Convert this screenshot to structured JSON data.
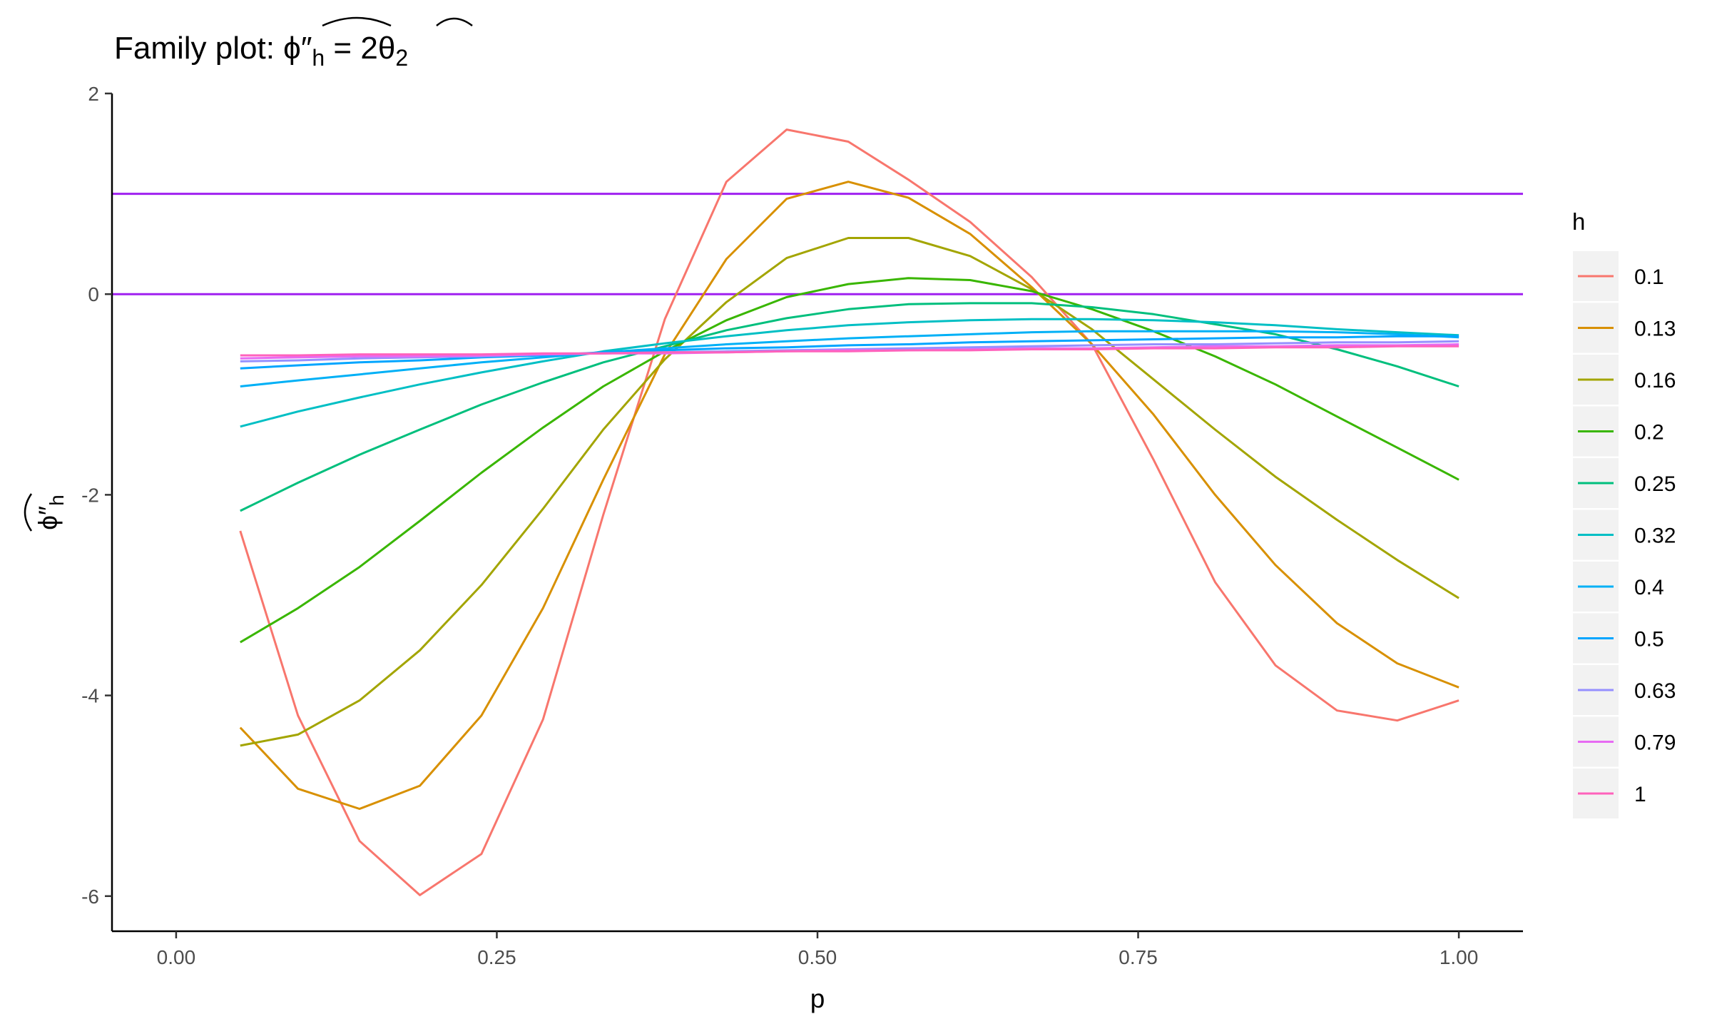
{
  "chart_data": {
    "type": "line",
    "title": {
      "prefix": "Family plot: ",
      "phi": "ϕ",
      "prime": "″",
      "h": "h",
      "eq": " = ",
      "two": "2",
      "theta": "θ",
      "sub2": "2"
    },
    "xlabel": "p",
    "ylabel": {
      "phi": "ϕ",
      "prime": "″",
      "h": "h"
    },
    "xlim": [
      -0.05,
      1.05
    ],
    "ylim": [
      -6.35,
      2.0
    ],
    "xticks": [
      0.0,
      0.25,
      0.5,
      0.75,
      1.0
    ],
    "xtick_labels": [
      "0.00",
      "0.25",
      "0.50",
      "0.75",
      "1.00"
    ],
    "yticks": [
      2,
      0,
      -2,
      -4,
      -6
    ],
    "ytick_labels": [
      "2",
      "0",
      "-2",
      "-4",
      "-6"
    ],
    "grid": false,
    "legend_position": "right",
    "legend_title": "h",
    "hlines": [
      {
        "y": 1,
        "color": "#a020f0"
      },
      {
        "y": 0,
        "color": "#a020f0"
      }
    ],
    "x": [
      0.05,
      0.095,
      0.143,
      0.19,
      0.238,
      0.286,
      0.333,
      0.381,
      0.429,
      0.476,
      0.524,
      0.571,
      0.619,
      0.667,
      0.714,
      0.762,
      0.81,
      0.857,
      0.905,
      0.952,
      1.0
    ],
    "series": [
      {
        "name": "0.1",
        "color": "#F8766D",
        "values": [
          -2.36,
          -4.2,
          -5.45,
          -5.99,
          -5.58,
          -4.24,
          -2.2,
          -0.25,
          1.12,
          1.64,
          1.52,
          1.14,
          0.72,
          0.17,
          -0.5,
          -1.65,
          -2.87,
          -3.7,
          -4.15,
          -4.25,
          -4.05
        ]
      },
      {
        "name": "0.13",
        "color": "#D89000",
        "values": [
          -4.32,
          -4.93,
          -5.13,
          -4.9,
          -4.2,
          -3.13,
          -1.85,
          -0.6,
          0.35,
          0.95,
          1.12,
          0.96,
          0.6,
          0.07,
          -0.5,
          -1.2,
          -2.0,
          -2.7,
          -3.28,
          -3.68,
          -3.92
        ]
      },
      {
        "name": "0.16",
        "color": "#A3A500",
        "values": [
          -4.5,
          -4.39,
          -4.05,
          -3.55,
          -2.9,
          -2.14,
          -1.35,
          -0.65,
          -0.08,
          0.36,
          0.56,
          0.56,
          0.38,
          0.05,
          -0.35,
          -0.85,
          -1.35,
          -1.82,
          -2.25,
          -2.65,
          -3.03
        ]
      },
      {
        "name": "0.2",
        "color": "#39B600",
        "values": [
          -3.47,
          -3.13,
          -2.72,
          -2.26,
          -1.78,
          -1.33,
          -0.92,
          -0.57,
          -0.26,
          -0.03,
          0.1,
          0.16,
          0.14,
          0.03,
          -0.15,
          -0.37,
          -0.62,
          -0.9,
          -1.22,
          -1.53,
          -1.85
        ]
      },
      {
        "name": "0.25",
        "color": "#00BF7D",
        "values": [
          -2.16,
          -1.88,
          -1.6,
          -1.35,
          -1.1,
          -0.88,
          -0.68,
          -0.52,
          -0.36,
          -0.24,
          -0.15,
          -0.1,
          -0.09,
          -0.09,
          -0.13,
          -0.2,
          -0.3,
          -0.4,
          -0.55,
          -0.72,
          -0.92
        ]
      },
      {
        "name": "0.32",
        "color": "#00BFC4",
        "values": [
          -1.32,
          -1.17,
          -1.03,
          -0.9,
          -0.78,
          -0.67,
          -0.57,
          -0.49,
          -0.42,
          -0.36,
          -0.31,
          -0.28,
          -0.26,
          -0.25,
          -0.25,
          -0.26,
          -0.28,
          -0.31,
          -0.35,
          -0.38,
          -0.41
        ]
      },
      {
        "name": "0.4",
        "color": "#00B0F6",
        "values": [
          -0.92,
          -0.86,
          -0.8,
          -0.74,
          -0.68,
          -0.63,
          -0.58,
          -0.54,
          -0.5,
          -0.47,
          -0.44,
          -0.42,
          -0.4,
          -0.38,
          -0.37,
          -0.37,
          -0.37,
          -0.37,
          -0.38,
          -0.4,
          -0.43
        ]
      },
      {
        "name": "0.5",
        "color": "#00A5FF",
        "values": [
          -0.74,
          -0.71,
          -0.68,
          -0.66,
          -0.63,
          -0.61,
          -0.58,
          -0.56,
          -0.54,
          -0.53,
          -0.51,
          -0.5,
          -0.48,
          -0.47,
          -0.46,
          -0.45,
          -0.44,
          -0.43,
          -0.43,
          -0.42,
          -0.42
        ]
      },
      {
        "name": "0.63",
        "color": "#9590FF",
        "values": [
          -0.67,
          -0.66,
          -0.64,
          -0.63,
          -0.62,
          -0.6,
          -0.59,
          -0.58,
          -0.57,
          -0.56,
          -0.55,
          -0.54,
          -0.53,
          -0.52,
          -0.51,
          -0.5,
          -0.5,
          -0.49,
          -0.48,
          -0.48,
          -0.47
        ]
      },
      {
        "name": "0.79",
        "color": "#E76BF3",
        "values": [
          -0.64,
          -0.63,
          -0.62,
          -0.62,
          -0.61,
          -0.6,
          -0.59,
          -0.59,
          -0.58,
          -0.57,
          -0.56,
          -0.56,
          -0.55,
          -0.54,
          -0.54,
          -0.53,
          -0.52,
          -0.52,
          -0.51,
          -0.51,
          -0.5
        ]
      },
      {
        "name": "1",
        "color": "#FF62BC",
        "values": [
          -0.61,
          -0.61,
          -0.6,
          -0.6,
          -0.6,
          -0.59,
          -0.59,
          -0.58,
          -0.58,
          -0.57,
          -0.57,
          -0.56,
          -0.56,
          -0.55,
          -0.55,
          -0.54,
          -0.54,
          -0.53,
          -0.53,
          -0.52,
          -0.52
        ]
      }
    ]
  }
}
